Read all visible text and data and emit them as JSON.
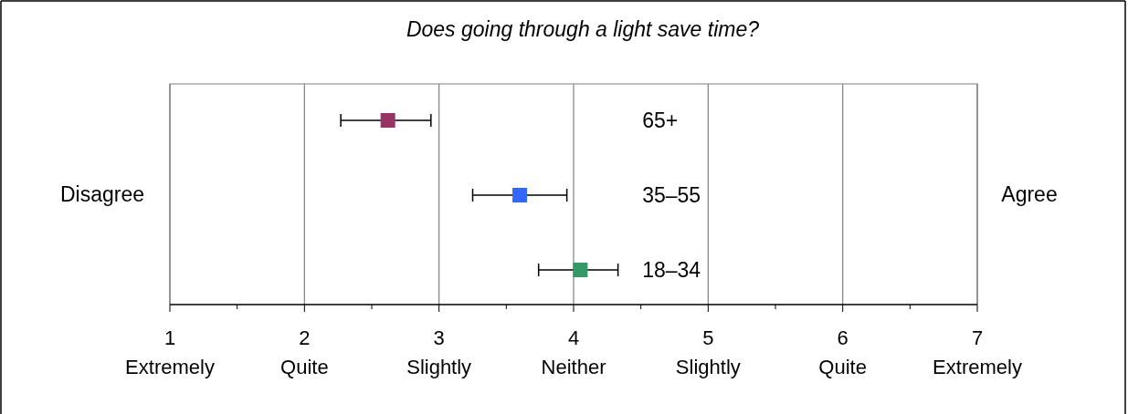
{
  "chart_data": {
    "type": "scatter",
    "orientation": "horizontal",
    "title": "Does going through a light save time?",
    "ylabel": "Disagree",
    "y2label": "Agree",
    "categories": [
      "65+",
      "35–55",
      "18–34"
    ],
    "values": [
      2.62,
      3.6,
      4.05
    ],
    "errors": [
      [
        2.27,
        2.94
      ],
      [
        3.25,
        3.95
      ],
      [
        3.74,
        4.33
      ]
    ],
    "colors": [
      "#993366",
      "#3366ff",
      "#339966"
    ],
    "xlim": [
      1,
      7
    ],
    "xticks": [
      {
        "value": 1,
        "label": "1\nExtremely"
      },
      {
        "value": 1.5,
        "label": null
      },
      {
        "value": 2,
        "label": "2\nQuite"
      },
      {
        "value": 2.5,
        "label": null
      },
      {
        "value": 3,
        "label": "3\nSlightly"
      },
      {
        "value": 3.5,
        "label": null
      },
      {
        "value": 4,
        "label": "4\nNeither"
      },
      {
        "value": 4.5,
        "label": null
      },
      {
        "value": 5,
        "label": "5\nSlightly"
      },
      {
        "value": 5.5,
        "label": null
      },
      {
        "value": 6,
        "label": "6\nQuite"
      },
      {
        "value": 6.5,
        "label": null
      },
      {
        "value": 7,
        "label": "7\nExtremely"
      }
    ],
    "grid": "x",
    "marker": "square"
  }
}
